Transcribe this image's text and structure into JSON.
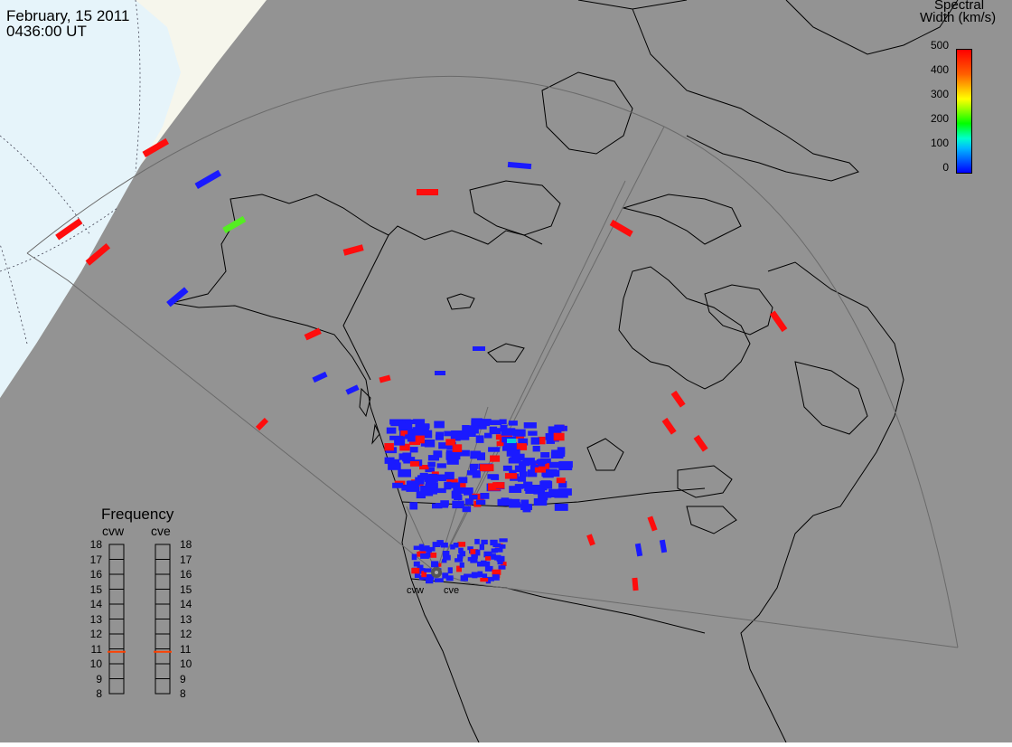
{
  "header": {
    "date": "February, 15 2011",
    "time": "0436:00 UT"
  },
  "colorbar": {
    "title_line1": "Spectral",
    "title_line2": "Width (km/s)",
    "ticks": [
      "500",
      "400",
      "300",
      "200",
      "100",
      "0"
    ],
    "range": [
      0,
      500
    ],
    "colors": [
      "#0000ff",
      "#00b8ff",
      "#00ff00",
      "#ffff00",
      "#ff6000",
      "#ff0000"
    ]
  },
  "frequency_panel": {
    "title": "Frequency",
    "radars": [
      "cvw",
      "cve"
    ],
    "scale": [
      "18",
      "17",
      "16",
      "15",
      "14",
      "13",
      "12",
      "11",
      "10",
      "9",
      "8"
    ],
    "range_mhz": [
      8,
      18
    ],
    "current_mhz": {
      "cvw": 10.8,
      "cve": 10.8
    },
    "marker_color": "#ff4000"
  },
  "radar_sites": [
    "cvw",
    "cve"
  ],
  "map_colors": {
    "ocean_gray": "#939393",
    "nightside_blue": "#e6f4fa",
    "terminator_cream": "#f6f6ec",
    "coast_line": "#000000",
    "fov_line": "#6a6a6a",
    "site_marker": "#555555"
  },
  "echo_colors": {
    "low": "#1a1aff",
    "high": "#ff0d0d",
    "mid_green": "#55ee22",
    "mid_cyan": "#00ccdd"
  }
}
